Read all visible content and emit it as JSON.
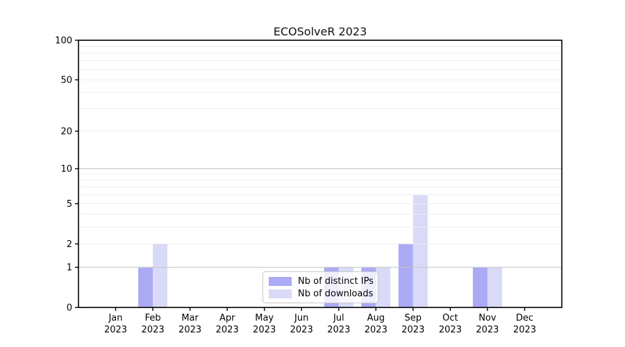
{
  "title": "ECOSolveR 2023",
  "chart_data": {
    "type": "bar",
    "title": "ECOSolveR 2023",
    "categories": [
      "Jan",
      "Feb",
      "Mar",
      "Apr",
      "May",
      "Jun",
      "Jul",
      "Aug",
      "Sep",
      "Oct",
      "Nov",
      "Dec"
    ],
    "category_year": "2023",
    "series": [
      {
        "name": "Nb of distinct IPs",
        "color": "#aaaaf5",
        "values": [
          0,
          1,
          0,
          0,
          0,
          0,
          1,
          1,
          2,
          0,
          1,
          0
        ]
      },
      {
        "name": "Nb of downloads",
        "color": "#d9d9f8",
        "values": [
          0,
          2,
          0,
          0,
          0,
          0,
          1,
          1,
          6,
          0,
          1,
          0
        ]
      }
    ],
    "yscale": "log1p",
    "ylim": [
      0,
      100
    ],
    "y_ticks": [
      0,
      1,
      2,
      5,
      10,
      20,
      50,
      100
    ],
    "y_gridlines_major": [
      1,
      10,
      100
    ],
    "y_gridlines_minor": [
      2,
      3,
      4,
      5,
      6,
      7,
      8,
      9,
      20,
      30,
      40,
      50,
      60,
      70,
      80,
      90
    ],
    "grid": true,
    "legend_position": "lower center"
  },
  "colors": {
    "grid_major": "#c8c8c8",
    "grid_minor": "#ededed",
    "axis": "#000000",
    "text": "#000000",
    "legend_border": "#c9c9c9",
    "background": "#ffffff"
  }
}
